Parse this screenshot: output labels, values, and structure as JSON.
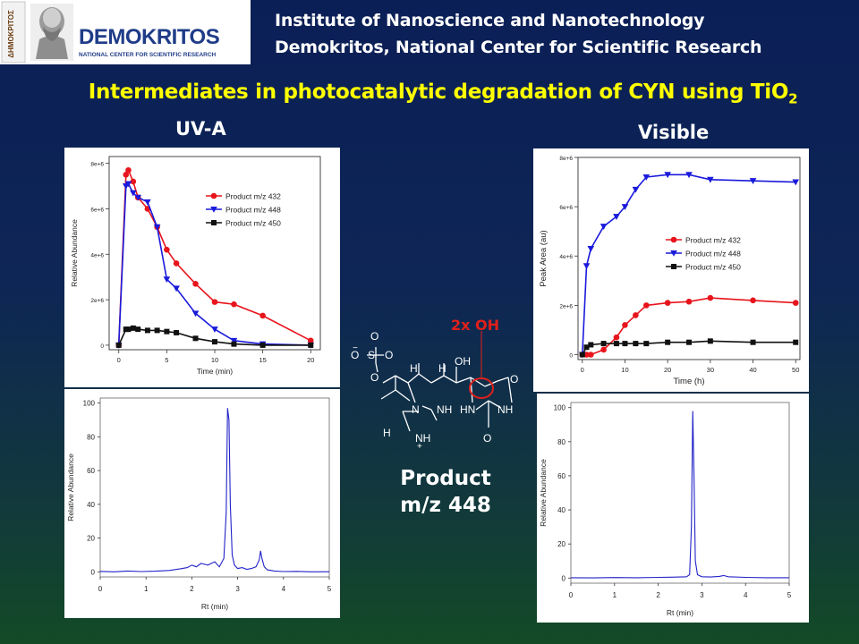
{
  "header": {
    "logo_text": "DEMOKRITOS",
    "logo_subtext": "NATIONAL CENTER FOR SCIENTIFIC RESEARCH",
    "emblem_text": "ΔΗΜΟΚΡΙΤΟΣ",
    "line1": "Institute of Nanoscience and Nanotechnology",
    "line2": "Demokritos, National Center for Scientific Research"
  },
  "title": {
    "main": "Intermediates in photocatalytic degradation of CYN using TiO",
    "subscript": "2"
  },
  "labels": {
    "left": "UV-A",
    "right": "Visible"
  },
  "structure": {
    "annotation": "2x OH",
    "caption_line1": "Product",
    "caption_line2": "m/z 448",
    "atoms": [
      "O",
      "O",
      "S",
      "O",
      "O",
      "H",
      "H",
      "OH",
      "O",
      "N",
      "NH",
      "HN",
      "NH",
      "H",
      "NH",
      "O",
      "+",
      "−"
    ]
  },
  "chart_data": [
    {
      "id": "uva-kinetics",
      "type": "line",
      "xlabel": "Time (min)",
      "ylabel": "Relative Abundance",
      "xlim": [
        -1,
        21
      ],
      "ylim": [
        -200000,
        8300000
      ],
      "xticks": [
        "0",
        "5",
        "10",
        "15",
        "20"
      ],
      "xtick_values": [
        0,
        5,
        10,
        15,
        20
      ],
      "yticks": [
        "0",
        "2e+6",
        "4e+6",
        "6e+6",
        "8e+6"
      ],
      "ytick_values": [
        0,
        2000000,
        4000000,
        6000000,
        8000000
      ],
      "legend_position": "top-right",
      "series": [
        {
          "name": "Product m/z 432",
          "color": "#e8141c",
          "marker": "circle",
          "x": [
            0,
            0.75,
            1,
            1.5,
            2,
            3,
            4,
            5,
            6,
            8,
            10,
            12,
            15,
            20
          ],
          "y": [
            0,
            7500000,
            7700000,
            7200000,
            6500000,
            6000000,
            5200000,
            4200000,
            3600000,
            2700000,
            1900000,
            1800000,
            1300000,
            200000
          ]
        },
        {
          "name": "Product m/z 448",
          "color": "#1a1adc",
          "marker": "triangle-down",
          "x": [
            0,
            0.75,
            1,
            1.5,
            2,
            3,
            4,
            5,
            6,
            8,
            10,
            12,
            15,
            20
          ],
          "y": [
            0,
            7000000,
            7100000,
            6700000,
            6500000,
            6300000,
            5200000,
            2900000,
            2500000,
            1400000,
            700000,
            200000,
            50000,
            0
          ]
        },
        {
          "name": "Product m/z 450",
          "color": "#111111",
          "marker": "square",
          "x": [
            0,
            0.75,
            1,
            1.5,
            2,
            3,
            4,
            5,
            6,
            8,
            10,
            12,
            15,
            20
          ],
          "y": [
            0,
            700000,
            700000,
            750000,
            700000,
            650000,
            650000,
            600000,
            550000,
            300000,
            150000,
            50000,
            0,
            0
          ]
        }
      ]
    },
    {
      "id": "visible-kinetics",
      "type": "line",
      "xlabel": "Time (h)",
      "ylabel": "Peak Area (au)",
      "xlim": [
        -1,
        51
      ],
      "ylim": [
        -200000,
        8000000
      ],
      "xticks": [
        "0",
        "10",
        "20",
        "30",
        "40",
        "50"
      ],
      "xtick_values": [
        0,
        10,
        20,
        30,
        40,
        50
      ],
      "yticks": [
        "0",
        "2e+6",
        "4e+6",
        "6e+6",
        "8e+6"
      ],
      "ytick_values": [
        0,
        2000000,
        4000000,
        6000000,
        8000000
      ],
      "legend_position": "middle-right",
      "series": [
        {
          "name": "Product m/z 432",
          "color": "#e8141c",
          "marker": "circle",
          "x": [
            0,
            1,
            2,
            5,
            8,
            10,
            12.5,
            15,
            20,
            25,
            30,
            40,
            50
          ],
          "y": [
            0,
            0,
            0,
            200000,
            700000,
            1200000,
            1600000,
            2000000,
            2100000,
            2150000,
            2300000,
            2200000,
            2100000
          ]
        },
        {
          "name": "Product m/z 448",
          "color": "#1a1adc",
          "marker": "triangle-down",
          "x": [
            0,
            1,
            2,
            5,
            8,
            10,
            12.5,
            15,
            20,
            25,
            30,
            40,
            50
          ],
          "y": [
            0,
            3600000,
            4300000,
            5200000,
            5600000,
            6000000,
            6700000,
            7200000,
            7300000,
            7300000,
            7100000,
            7050000,
            7000000
          ]
        },
        {
          "name": "Product m/z 450",
          "color": "#111111",
          "marker": "square",
          "x": [
            0,
            1,
            2,
            5,
            8,
            10,
            12.5,
            15,
            20,
            25,
            30,
            40,
            50
          ],
          "y": [
            0,
            300000,
            400000,
            450000,
            450000,
            450000,
            450000,
            450000,
            500000,
            500000,
            550000,
            500000,
            500000
          ]
        }
      ]
    },
    {
      "id": "uva-chromatogram",
      "type": "line",
      "xlabel": "Rt (min)",
      "ylabel": "Relative Abundance",
      "xlim": [
        0,
        5
      ],
      "ylim": [
        -3,
        103
      ],
      "xticks": [
        "0",
        "1",
        "2",
        "3",
        "4",
        "5"
      ],
      "xtick_values": [
        0,
        1,
        2,
        3,
        4,
        5
      ],
      "yticks": [
        "0",
        "20",
        "40",
        "60",
        "80",
        "100"
      ],
      "ytick_values": [
        0,
        20,
        40,
        60,
        80,
        100
      ],
      "series": [
        {
          "color": "#2222c8",
          "x": [
            0,
            0.3,
            0.6,
            0.9,
            1.2,
            1.5,
            1.75,
            1.9,
            2.0,
            2.1,
            2.2,
            2.35,
            2.5,
            2.6,
            2.7,
            2.75,
            2.78,
            2.81,
            2.84,
            2.88,
            2.93,
            3.0,
            3.1,
            3.2,
            3.3,
            3.4,
            3.47,
            3.5,
            3.53,
            3.58,
            3.65,
            3.8,
            4.0,
            4.3,
            4.6,
            5.0
          ],
          "y": [
            0.3,
            0,
            0.5,
            0.2,
            0.4,
            0.8,
            1.8,
            2.5,
            4,
            3,
            5,
            4,
            6,
            3,
            8,
            35,
            97,
            90,
            40,
            10,
            4,
            2,
            2.5,
            1.5,
            2,
            3,
            7,
            12.5,
            8,
            3,
            1.2,
            0.5,
            0.2,
            0.3,
            0,
            0.1
          ]
        }
      ]
    },
    {
      "id": "visible-chromatogram",
      "type": "line",
      "xlabel": "Rt (min)",
      "ylabel": "Relative Abundance",
      "xlim": [
        0,
        5
      ],
      "ylim": [
        -3,
        103
      ],
      "xticks": [
        "0",
        "1",
        "2",
        "3",
        "4",
        "5"
      ],
      "xtick_values": [
        0,
        1,
        2,
        3,
        4,
        5
      ],
      "yticks": [
        "0",
        "20",
        "40",
        "60",
        "80",
        "100"
      ],
      "ytick_values": [
        0,
        20,
        40,
        60,
        80,
        100
      ],
      "series": [
        {
          "color": "#2222c8",
          "x": [
            0,
            0.5,
            1.0,
            1.5,
            2.0,
            2.3,
            2.5,
            2.65,
            2.72,
            2.76,
            2.79,
            2.82,
            2.85,
            2.9,
            3.0,
            3.2,
            3.4,
            3.5,
            3.6,
            4.0,
            4.5,
            5.0
          ],
          "y": [
            0.2,
            0.1,
            0.3,
            0.2,
            0.4,
            0.5,
            0.6,
            0.8,
            2,
            30,
            98,
            60,
            10,
            2,
            0.8,
            0.6,
            1.0,
            1.5,
            0.8,
            0.4,
            0.2,
            0.2
          ]
        }
      ]
    }
  ]
}
